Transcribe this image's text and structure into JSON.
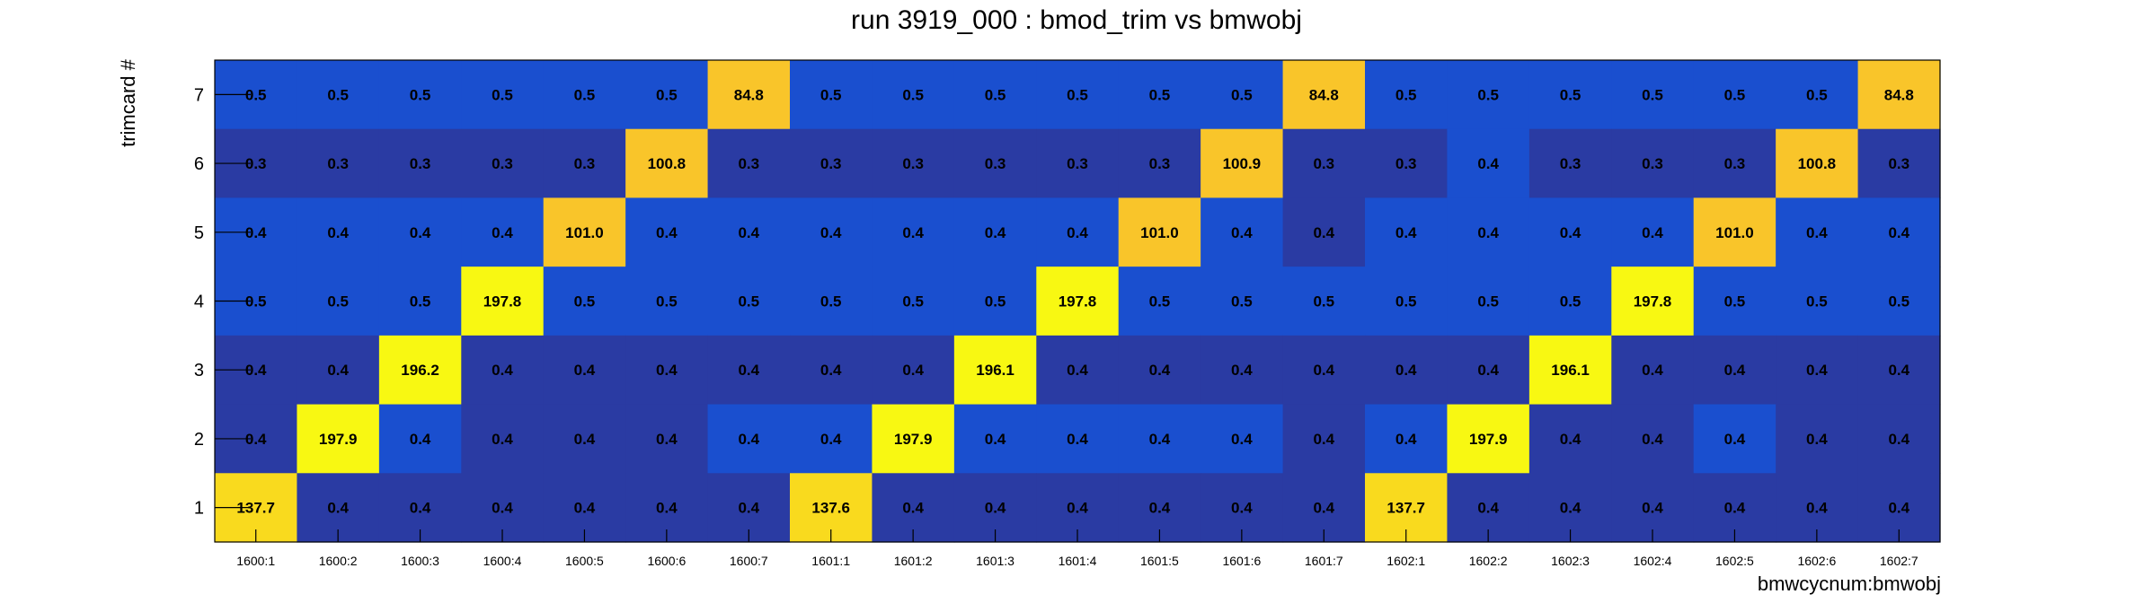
{
  "chart_data": {
    "type": "heatmap",
    "title": "run 3919_000 : bmod_trim vs bmwobj",
    "xlabel": "bmwcycnum:bmwobj",
    "ylabel": "trimcard #",
    "categories": [
      "1600:1",
      "1600:2",
      "1600:3",
      "1600:4",
      "1600:5",
      "1600:6",
      "1600:7",
      "1601:1",
      "1601:2",
      "1601:3",
      "1601:4",
      "1601:5",
      "1601:6",
      "1601:7",
      "1602:1",
      "1602:2",
      "1602:3",
      "1602:4",
      "1602:5",
      "1602:6",
      "1602:7"
    ],
    "y_categories": [
      "1",
      "2",
      "3",
      "4",
      "5",
      "6",
      "7"
    ],
    "rows": [
      {
        "y": "7",
        "values": [
          0.5,
          0.5,
          0.5,
          0.5,
          0.5,
          0.5,
          84.8,
          0.5,
          0.5,
          0.5,
          0.5,
          0.5,
          0.5,
          84.8,
          0.5,
          0.5,
          0.5,
          0.5,
          0.5,
          0.5,
          84.8
        ]
      },
      {
        "y": "6",
        "values": [
          0.3,
          0.3,
          0.3,
          0.3,
          0.3,
          100.8,
          0.3,
          0.3,
          0.3,
          0.3,
          0.3,
          0.3,
          100.9,
          0.3,
          0.3,
          0.4,
          0.3,
          0.3,
          0.3,
          100.8,
          0.3
        ]
      },
      {
        "y": "5",
        "values": [
          0.4,
          0.4,
          0.4,
          0.4,
          101.0,
          0.4,
          0.4,
          0.4,
          0.4,
          0.4,
          0.4,
          101.0,
          0.4,
          0.4,
          0.4,
          0.4,
          0.4,
          0.4,
          101.0,
          0.4,
          0.4
        ]
      },
      {
        "y": "4",
        "values": [
          0.5,
          0.5,
          0.5,
          197.8,
          0.5,
          0.5,
          0.5,
          0.5,
          0.5,
          0.5,
          197.8,
          0.5,
          0.5,
          0.5,
          0.5,
          0.5,
          0.5,
          197.8,
          0.5,
          0.5,
          0.5
        ]
      },
      {
        "y": "3",
        "values": [
          0.4,
          0.4,
          196.2,
          0.4,
          0.4,
          0.4,
          0.4,
          0.4,
          0.4,
          196.1,
          0.4,
          0.4,
          0.4,
          0.4,
          0.4,
          0.4,
          196.1,
          0.4,
          0.4,
          0.4,
          0.4
        ]
      },
      {
        "y": "2",
        "values": [
          0.4,
          197.9,
          0.4,
          0.4,
          0.4,
          0.4,
          0.4,
          0.4,
          197.9,
          0.4,
          0.4,
          0.4,
          0.4,
          0.4,
          0.4,
          197.9,
          0.4,
          0.4,
          0.4,
          0.4,
          0.4
        ]
      },
      {
        "y": "1",
        "values": [
          137.7,
          0.4,
          0.4,
          0.4,
          0.4,
          0.4,
          0.4,
          137.6,
          0.4,
          0.4,
          0.4,
          0.4,
          0.4,
          0.4,
          137.7,
          0.4,
          0.4,
          0.4,
          0.4,
          0.4,
          0.4
        ]
      }
    ],
    "cell_colors": [
      [
        "#1a4fcf",
        "#1a4fcf",
        "#1a4fcf",
        "#1a4fcf",
        "#1a4fcf",
        "#1a4fcf",
        "#f9c52a",
        "#1a4fcf",
        "#1a4fcf",
        "#1a4fcf",
        "#1a4fcf",
        "#1a4fcf",
        "#1a4fcf",
        "#f9c52a",
        "#1a4fcf",
        "#1a4fcf",
        "#1a4fcf",
        "#1a4fcf",
        "#1a4fcf",
        "#1a4fcf",
        "#f9c52a"
      ],
      [
        "#2a3ba3",
        "#2a3ba3",
        "#2a3ba3",
        "#2a3ba3",
        "#2a3ba3",
        "#f9c52a",
        "#2a3ba3",
        "#2a3ba3",
        "#2a3ba3",
        "#2a3ba3",
        "#2a3ba3",
        "#2a3ba3",
        "#f9c52a",
        "#2a3ba3",
        "#2a3ba3",
        "#1a4fcf",
        "#2a3ba3",
        "#2a3ba3",
        "#2a3ba3",
        "#f9c52a",
        "#2a3ba3"
      ],
      [
        "#1a4fcf",
        "#1a4fcf",
        "#1a4fcf",
        "#1a4fcf",
        "#f9c52a",
        "#1a4fcf",
        "#1a4fcf",
        "#1a4fcf",
        "#1a4fcf",
        "#1a4fcf",
        "#1a4fcf",
        "#f9c52a",
        "#1a4fcf",
        "#2a3ba3",
        "#1a4fcf",
        "#1a4fcf",
        "#1a4fcf",
        "#1a4fcf",
        "#f9c52a",
        "#1a4fcf",
        "#1a4fcf"
      ],
      [
        "#1a4fcf",
        "#1a4fcf",
        "#1a4fcf",
        "#f8f812",
        "#1a4fcf",
        "#1a4fcf",
        "#1a4fcf",
        "#1a4fcf",
        "#1a4fcf",
        "#1a4fcf",
        "#f8f812",
        "#1a4fcf",
        "#1a4fcf",
        "#1a4fcf",
        "#1a4fcf",
        "#1a4fcf",
        "#1a4fcf",
        "#f8f812",
        "#1a4fcf",
        "#1a4fcf",
        "#1a4fcf"
      ],
      [
        "#2a3ba3",
        "#2a3ba3",
        "#f8f812",
        "#2a3ba3",
        "#2a3ba3",
        "#2a3ba3",
        "#2a3ba3",
        "#2a3ba3",
        "#2a3ba3",
        "#f8f812",
        "#2a3ba3",
        "#2a3ba3",
        "#2a3ba3",
        "#2a3ba3",
        "#2a3ba3",
        "#2a3ba3",
        "#f8f812",
        "#2a3ba3",
        "#2a3ba3",
        "#2a3ba3",
        "#2a3ba3"
      ],
      [
        "#2a3ba3",
        "#f8f812",
        "#1a4fcf",
        "#2a3ba3",
        "#2a3ba3",
        "#2a3ba3",
        "#1a4fcf",
        "#1a4fcf",
        "#f8f812",
        "#1a4fcf",
        "#1a4fcf",
        "#1a4fcf",
        "#1a4fcf",
        "#2a3ba3",
        "#1a4fcf",
        "#f8f812",
        "#2a3ba3",
        "#2a3ba3",
        "#1a4fcf",
        "#2a3ba3",
        "#2a3ba3"
      ],
      [
        "#f9da1e",
        "#2a3ba3",
        "#2a3ba3",
        "#2a3ba3",
        "#2a3ba3",
        "#2a3ba3",
        "#2a3ba3",
        "#f9da1e",
        "#2a3ba3",
        "#2a3ba3",
        "#2a3ba3",
        "#2a3ba3",
        "#2a3ba3",
        "#2a3ba3",
        "#f9da1e",
        "#2a3ba3",
        "#2a3ba3",
        "#2a3ba3",
        "#2a3ba3",
        "#2a3ba3",
        "#2a3ba3"
      ]
    ],
    "legend": "none",
    "grid": false
  }
}
